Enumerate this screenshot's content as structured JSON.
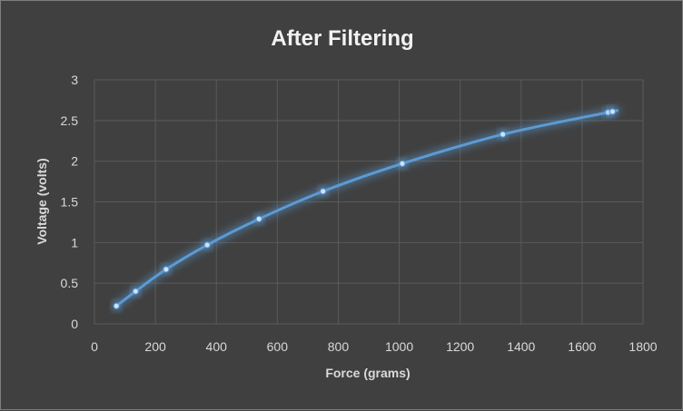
{
  "chart_data": {
    "type": "scatter",
    "title": "After Filtering",
    "xlabel": "Force (grams)",
    "ylabel": "Voltage (volts)",
    "xlim": [
      0,
      1800
    ],
    "ylim": [
      0,
      3
    ],
    "x_ticks": [
      "0",
      "200",
      "400",
      "600",
      "800",
      "1000",
      "1200",
      "1400",
      "1600",
      "1800"
    ],
    "y_ticks": [
      "0",
      "0.5",
      "1",
      "1.5",
      "2",
      "2.5",
      "3"
    ],
    "grid": true,
    "line_style": "smoothed line with markers",
    "series": [
      {
        "color": "#5b9bd5",
        "x": [
          72,
          135,
          235,
          370,
          540,
          750,
          1010,
          1340,
          1685,
          1700
        ],
        "y": [
          0.22,
          0.4,
          0.67,
          0.97,
          1.29,
          1.63,
          1.97,
          2.33,
          2.6,
          2.61
        ]
      }
    ]
  }
}
